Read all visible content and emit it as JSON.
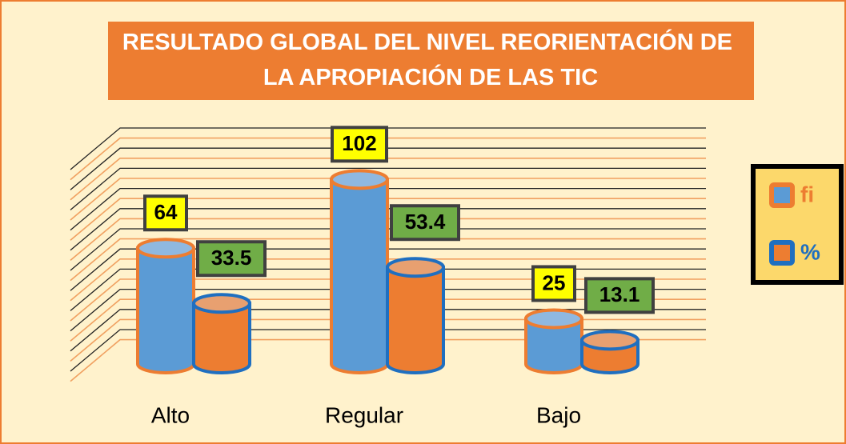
{
  "chart_data": {
    "type": "cylinder",
    "title": "RESULTADO GLOBAL DEL NIVEL REORIENTACIÓN DE LA APROPIACIÓN DE LAS TIC",
    "categories": [
      "Alto",
      "Regular",
      "Bajo"
    ],
    "series": [
      {
        "name": "fi",
        "color": "#5b9bd5",
        "values": [
          64,
          102,
          25
        ]
      },
      {
        "name": "%",
        "color": "#ed7d31",
        "values": [
          33.5,
          53.4,
          13.1
        ]
      }
    ],
    "ylim": [
      0,
      130
    ]
  }
}
